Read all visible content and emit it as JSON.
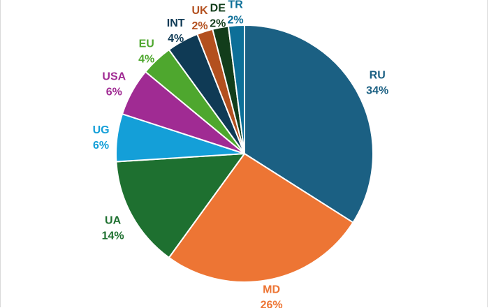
{
  "chart_data": {
    "type": "pie",
    "title": "",
    "categories": [
      "RU",
      "MD",
      "UA",
      "UG",
      "USA",
      "EU",
      "INT",
      "UK",
      "DE",
      "TR"
    ],
    "values": [
      34,
      26,
      14,
      6,
      6,
      4,
      4,
      2,
      2,
      2
    ],
    "value_labels": [
      "34%",
      "26%",
      "14%",
      "6%",
      "6%",
      "4%",
      "4%",
      "2%",
      "2%",
      "2%"
    ],
    "colors": [
      "#1b6083",
      "#ed7534",
      "#1e7030",
      "#149fd8",
      "#a02b93",
      "#4ea72e",
      "#0f3a55",
      "#b3501f",
      "#123d1b",
      "#0d6f98"
    ],
    "legend": "none",
    "start_angle_deg": 0,
    "direction": "clockwise"
  }
}
